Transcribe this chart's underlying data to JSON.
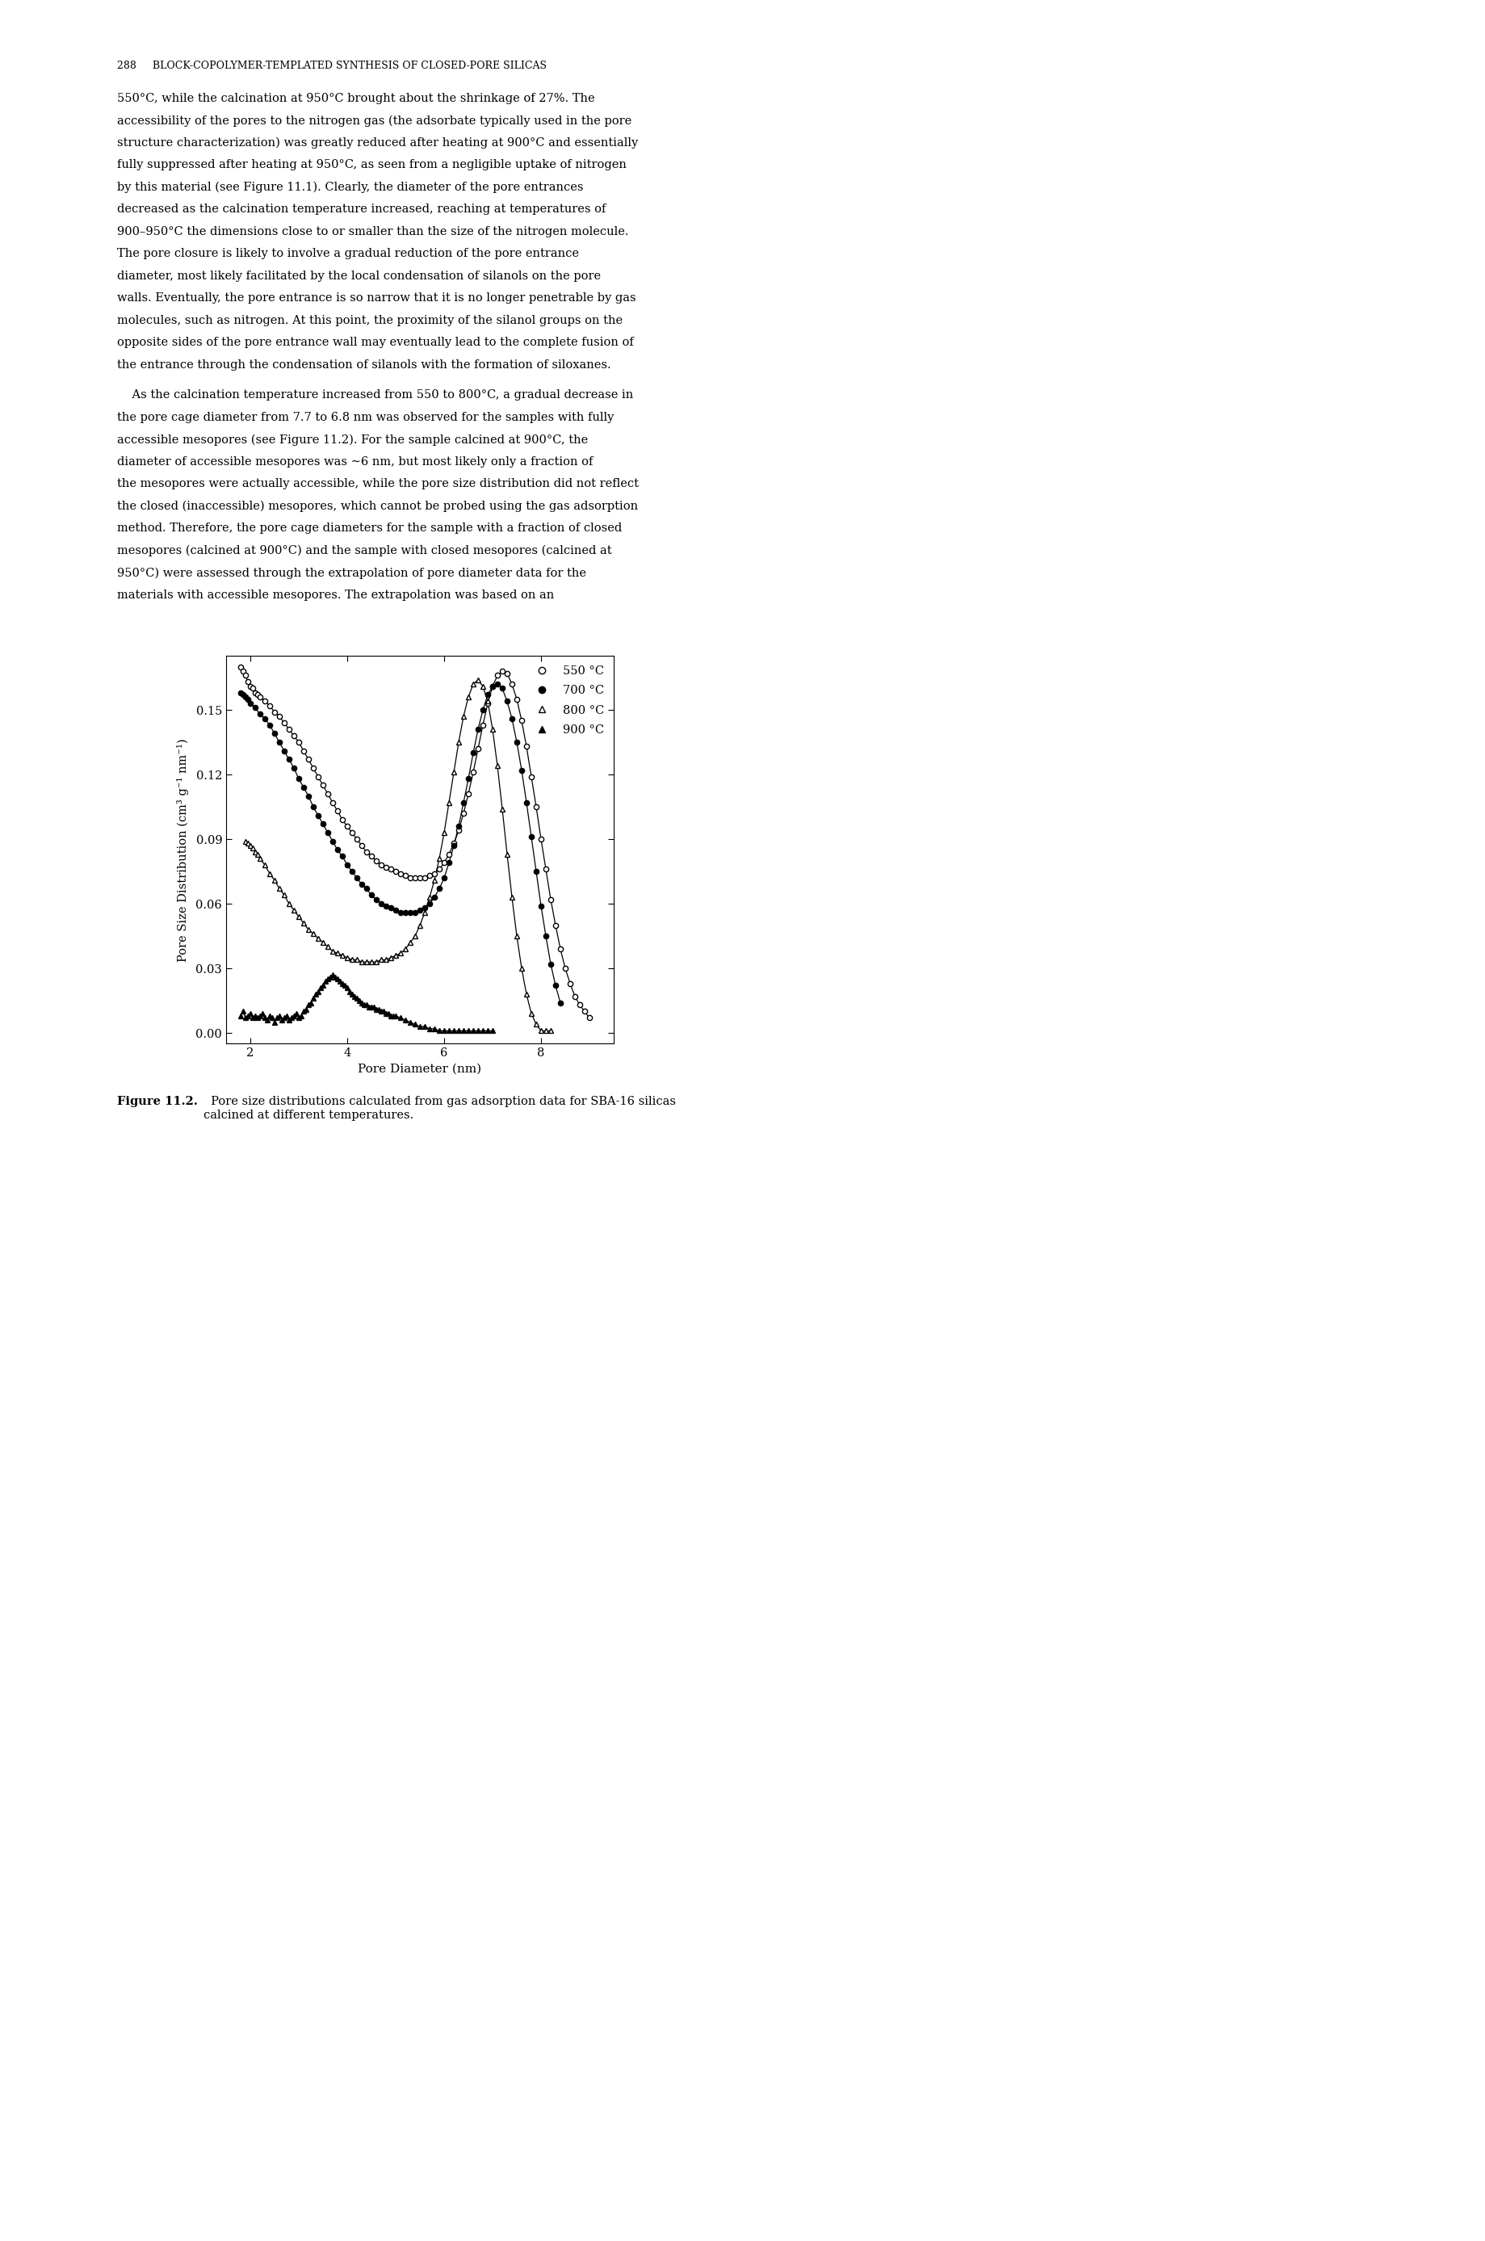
{
  "xlabel": "Pore Diameter (nm)",
  "ylabel": "Pore Size Distribution (cm³ g⁻¹ nm⁻¹)",
  "xlim": [
    1.5,
    9.5
  ],
  "ylim": [
    -0.005,
    0.175
  ],
  "yticks": [
    0.0,
    0.03,
    0.06,
    0.09,
    0.12,
    0.15
  ],
  "xticks": [
    2,
    4,
    6,
    8
  ],
  "background_color": "#ffffff",
  "fig_width": 18.39,
  "fig_height": 27.75,
  "header": "288     BLOCK-COPOLYMER-TEMPLATED SYNTHESIS OF CLOSED-PORE SILICAS",
  "para1": [
    "550°C, while the calcination at 950°C brought about the shrinkage of 27%. The",
    "accessibility of the pores to the nitrogen gas (the adsorbate typically used in the pore",
    "structure characterization) was greatly reduced after heating at 900°C and essentially",
    "fully suppressed after heating at 950°C, as seen from a negligible uptake of nitrogen",
    "by this material (see Figure 11.1). Clearly, the diameter of the pore entrances",
    "decreased as the calcination temperature increased, reaching at temperatures of",
    "900–950°C the dimensions close to or smaller than the size of the nitrogen molecule.",
    "The pore closure is likely to involve a gradual reduction of the pore entrance",
    "diameter, most likely facilitated by the local condensation of silanols on the pore",
    "walls. Eventually, the pore entrance is so narrow that it is no longer penetrable by gas",
    "molecules, such as nitrogen. At this point, the proximity of the silanol groups on the",
    "opposite sides of the pore entrance wall may eventually lead to the complete fusion of",
    "the entrance through the condensation of silanols with the formation of siloxanes."
  ],
  "para2": [
    "    As the calcination temperature increased from 550 to 800°C, a gradual decrease in",
    "the pore cage diameter from 7.7 to 6.8 nm was observed for the samples with fully",
    "accessible mesopores (see Figure 11.2). For the sample calcined at 900°C, the",
    "diameter of accessible mesopores was ∼6 nm, but most likely only a fraction of",
    "the mesopores were actually accessible, while the pore size distribution did not reflect",
    "the closed (inaccessible) mesopores, which cannot be probed using the gas adsorption",
    "method. Therefore, the pore cage diameters for the sample with a fraction of closed",
    "mesopores (calcined at 900°C) and the sample with closed mesopores (calcined at",
    "950°C) were assessed through the extrapolation of pore diameter data for the",
    "materials with accessible mesopores. The extrapolation was based on an"
  ],
  "caption_bold": "Figure 11.2.",
  "caption_rest": "  Pore size distributions calculated from gas adsorption data for SBA-16 silicas\ncalcined at different temperatures.",
  "series_550_x": [
    1.8,
    1.85,
    1.9,
    1.95,
    2.0,
    2.05,
    2.1,
    2.15,
    2.2,
    2.3,
    2.4,
    2.5,
    2.6,
    2.7,
    2.8,
    2.9,
    3.0,
    3.1,
    3.2,
    3.3,
    3.4,
    3.5,
    3.6,
    3.7,
    3.8,
    3.9,
    4.0,
    4.1,
    4.2,
    4.3,
    4.4,
    4.5,
    4.6,
    4.7,
    4.8,
    4.9,
    5.0,
    5.1,
    5.2,
    5.3,
    5.4,
    5.5,
    5.6,
    5.7,
    5.8,
    5.9,
    6.0,
    6.1,
    6.2,
    6.3,
    6.4,
    6.5,
    6.6,
    6.7,
    6.8,
    6.9,
    7.0,
    7.1,
    7.2,
    7.3,
    7.4,
    7.5,
    7.6,
    7.7,
    7.8,
    7.9,
    8.0,
    8.1,
    8.2,
    8.3,
    8.4,
    8.5,
    8.6,
    8.7,
    8.8,
    8.9,
    9.0
  ],
  "series_550_y": [
    0.17,
    0.168,
    0.166,
    0.163,
    0.161,
    0.16,
    0.158,
    0.157,
    0.156,
    0.154,
    0.152,
    0.149,
    0.147,
    0.144,
    0.141,
    0.138,
    0.135,
    0.131,
    0.127,
    0.123,
    0.119,
    0.115,
    0.111,
    0.107,
    0.103,
    0.099,
    0.096,
    0.093,
    0.09,
    0.087,
    0.084,
    0.082,
    0.08,
    0.078,
    0.077,
    0.076,
    0.075,
    0.074,
    0.073,
    0.072,
    0.072,
    0.072,
    0.072,
    0.073,
    0.074,
    0.076,
    0.079,
    0.083,
    0.088,
    0.094,
    0.102,
    0.111,
    0.121,
    0.132,
    0.143,
    0.153,
    0.161,
    0.166,
    0.168,
    0.167,
    0.162,
    0.155,
    0.145,
    0.133,
    0.119,
    0.105,
    0.09,
    0.076,
    0.062,
    0.05,
    0.039,
    0.03,
    0.023,
    0.017,
    0.013,
    0.01,
    0.007
  ],
  "series_700_x": [
    1.8,
    1.85,
    1.9,
    1.95,
    2.0,
    2.1,
    2.2,
    2.3,
    2.4,
    2.5,
    2.6,
    2.7,
    2.8,
    2.9,
    3.0,
    3.1,
    3.2,
    3.3,
    3.4,
    3.5,
    3.6,
    3.7,
    3.8,
    3.9,
    4.0,
    4.1,
    4.2,
    4.3,
    4.4,
    4.5,
    4.6,
    4.7,
    4.8,
    4.9,
    5.0,
    5.1,
    5.2,
    5.3,
    5.4,
    5.5,
    5.6,
    5.7,
    5.8,
    5.9,
    6.0,
    6.1,
    6.2,
    6.3,
    6.4,
    6.5,
    6.6,
    6.7,
    6.8,
    6.9,
    7.0,
    7.1,
    7.2,
    7.3,
    7.4,
    7.5,
    7.6,
    7.7,
    7.8,
    7.9,
    8.0,
    8.1,
    8.2,
    8.3,
    8.4
  ],
  "series_700_y": [
    0.158,
    0.157,
    0.156,
    0.155,
    0.153,
    0.151,
    0.148,
    0.146,
    0.143,
    0.139,
    0.135,
    0.131,
    0.127,
    0.123,
    0.118,
    0.114,
    0.11,
    0.105,
    0.101,
    0.097,
    0.093,
    0.089,
    0.085,
    0.082,
    0.078,
    0.075,
    0.072,
    0.069,
    0.067,
    0.064,
    0.062,
    0.06,
    0.059,
    0.058,
    0.057,
    0.056,
    0.056,
    0.056,
    0.056,
    0.057,
    0.058,
    0.06,
    0.063,
    0.067,
    0.072,
    0.079,
    0.087,
    0.096,
    0.107,
    0.118,
    0.13,
    0.141,
    0.15,
    0.157,
    0.161,
    0.162,
    0.16,
    0.154,
    0.146,
    0.135,
    0.122,
    0.107,
    0.091,
    0.075,
    0.059,
    0.045,
    0.032,
    0.022,
    0.014
  ],
  "series_800_x": [
    1.9,
    1.95,
    2.0,
    2.05,
    2.1,
    2.15,
    2.2,
    2.3,
    2.4,
    2.5,
    2.6,
    2.7,
    2.8,
    2.9,
    3.0,
    3.1,
    3.2,
    3.3,
    3.4,
    3.5,
    3.6,
    3.7,
    3.8,
    3.9,
    4.0,
    4.1,
    4.2,
    4.3,
    4.4,
    4.5,
    4.6,
    4.7,
    4.8,
    4.9,
    5.0,
    5.1,
    5.2,
    5.3,
    5.4,
    5.5,
    5.6,
    5.7,
    5.8,
    5.9,
    6.0,
    6.1,
    6.2,
    6.3,
    6.4,
    6.5,
    6.6,
    6.7,
    6.8,
    6.9,
    7.0,
    7.1,
    7.2,
    7.3,
    7.4,
    7.5,
    7.6,
    7.7,
    7.8,
    7.9,
    8.0,
    8.1,
    8.2
  ],
  "series_800_y": [
    0.089,
    0.088,
    0.087,
    0.086,
    0.084,
    0.083,
    0.081,
    0.078,
    0.074,
    0.071,
    0.067,
    0.064,
    0.06,
    0.057,
    0.054,
    0.051,
    0.048,
    0.046,
    0.044,
    0.042,
    0.04,
    0.038,
    0.037,
    0.036,
    0.035,
    0.034,
    0.034,
    0.033,
    0.033,
    0.033,
    0.033,
    0.034,
    0.034,
    0.035,
    0.036,
    0.037,
    0.039,
    0.042,
    0.045,
    0.05,
    0.056,
    0.063,
    0.071,
    0.081,
    0.093,
    0.107,
    0.121,
    0.135,
    0.147,
    0.156,
    0.162,
    0.164,
    0.161,
    0.154,
    0.141,
    0.124,
    0.104,
    0.083,
    0.063,
    0.045,
    0.03,
    0.018,
    0.009,
    0.004,
    0.001,
    0.001,
    0.001
  ],
  "series_900_x": [
    1.8,
    1.85,
    1.9,
    1.95,
    2.0,
    2.05,
    2.1,
    2.15,
    2.2,
    2.25,
    2.3,
    2.35,
    2.4,
    2.45,
    2.5,
    2.55,
    2.6,
    2.65,
    2.7,
    2.75,
    2.8,
    2.85,
    2.9,
    2.95,
    3.0,
    3.05,
    3.1,
    3.15,
    3.2,
    3.25,
    3.3,
    3.35,
    3.4,
    3.45,
    3.5,
    3.55,
    3.6,
    3.65,
    3.7,
    3.75,
    3.8,
    3.85,
    3.9,
    3.95,
    4.0,
    4.05,
    4.1,
    4.15,
    4.2,
    4.25,
    4.3,
    4.35,
    4.4,
    4.45,
    4.5,
    4.55,
    4.6,
    4.65,
    4.7,
    4.75,
    4.8,
    4.85,
    4.9,
    4.95,
    5.0,
    5.1,
    5.2,
    5.3,
    5.4,
    5.5,
    5.6,
    5.7,
    5.8,
    5.9,
    6.0,
    6.1,
    6.2,
    6.3,
    6.4,
    6.5,
    6.6,
    6.7,
    6.8,
    6.9,
    7.0
  ],
  "series_900_y": [
    0.008,
    0.01,
    0.007,
    0.008,
    0.009,
    0.007,
    0.008,
    0.007,
    0.008,
    0.009,
    0.007,
    0.006,
    0.008,
    0.007,
    0.005,
    0.007,
    0.008,
    0.006,
    0.007,
    0.008,
    0.006,
    0.007,
    0.008,
    0.009,
    0.007,
    0.008,
    0.01,
    0.011,
    0.013,
    0.014,
    0.016,
    0.018,
    0.019,
    0.021,
    0.022,
    0.024,
    0.025,
    0.026,
    0.027,
    0.026,
    0.025,
    0.024,
    0.023,
    0.022,
    0.021,
    0.019,
    0.018,
    0.017,
    0.016,
    0.015,
    0.014,
    0.013,
    0.013,
    0.012,
    0.012,
    0.012,
    0.011,
    0.011,
    0.01,
    0.01,
    0.009,
    0.009,
    0.008,
    0.008,
    0.008,
    0.007,
    0.006,
    0.005,
    0.004,
    0.003,
    0.003,
    0.002,
    0.002,
    0.001,
    0.001,
    0.001,
    0.001,
    0.001,
    0.001,
    0.001,
    0.001,
    0.001,
    0.001,
    0.001,
    0.001
  ]
}
